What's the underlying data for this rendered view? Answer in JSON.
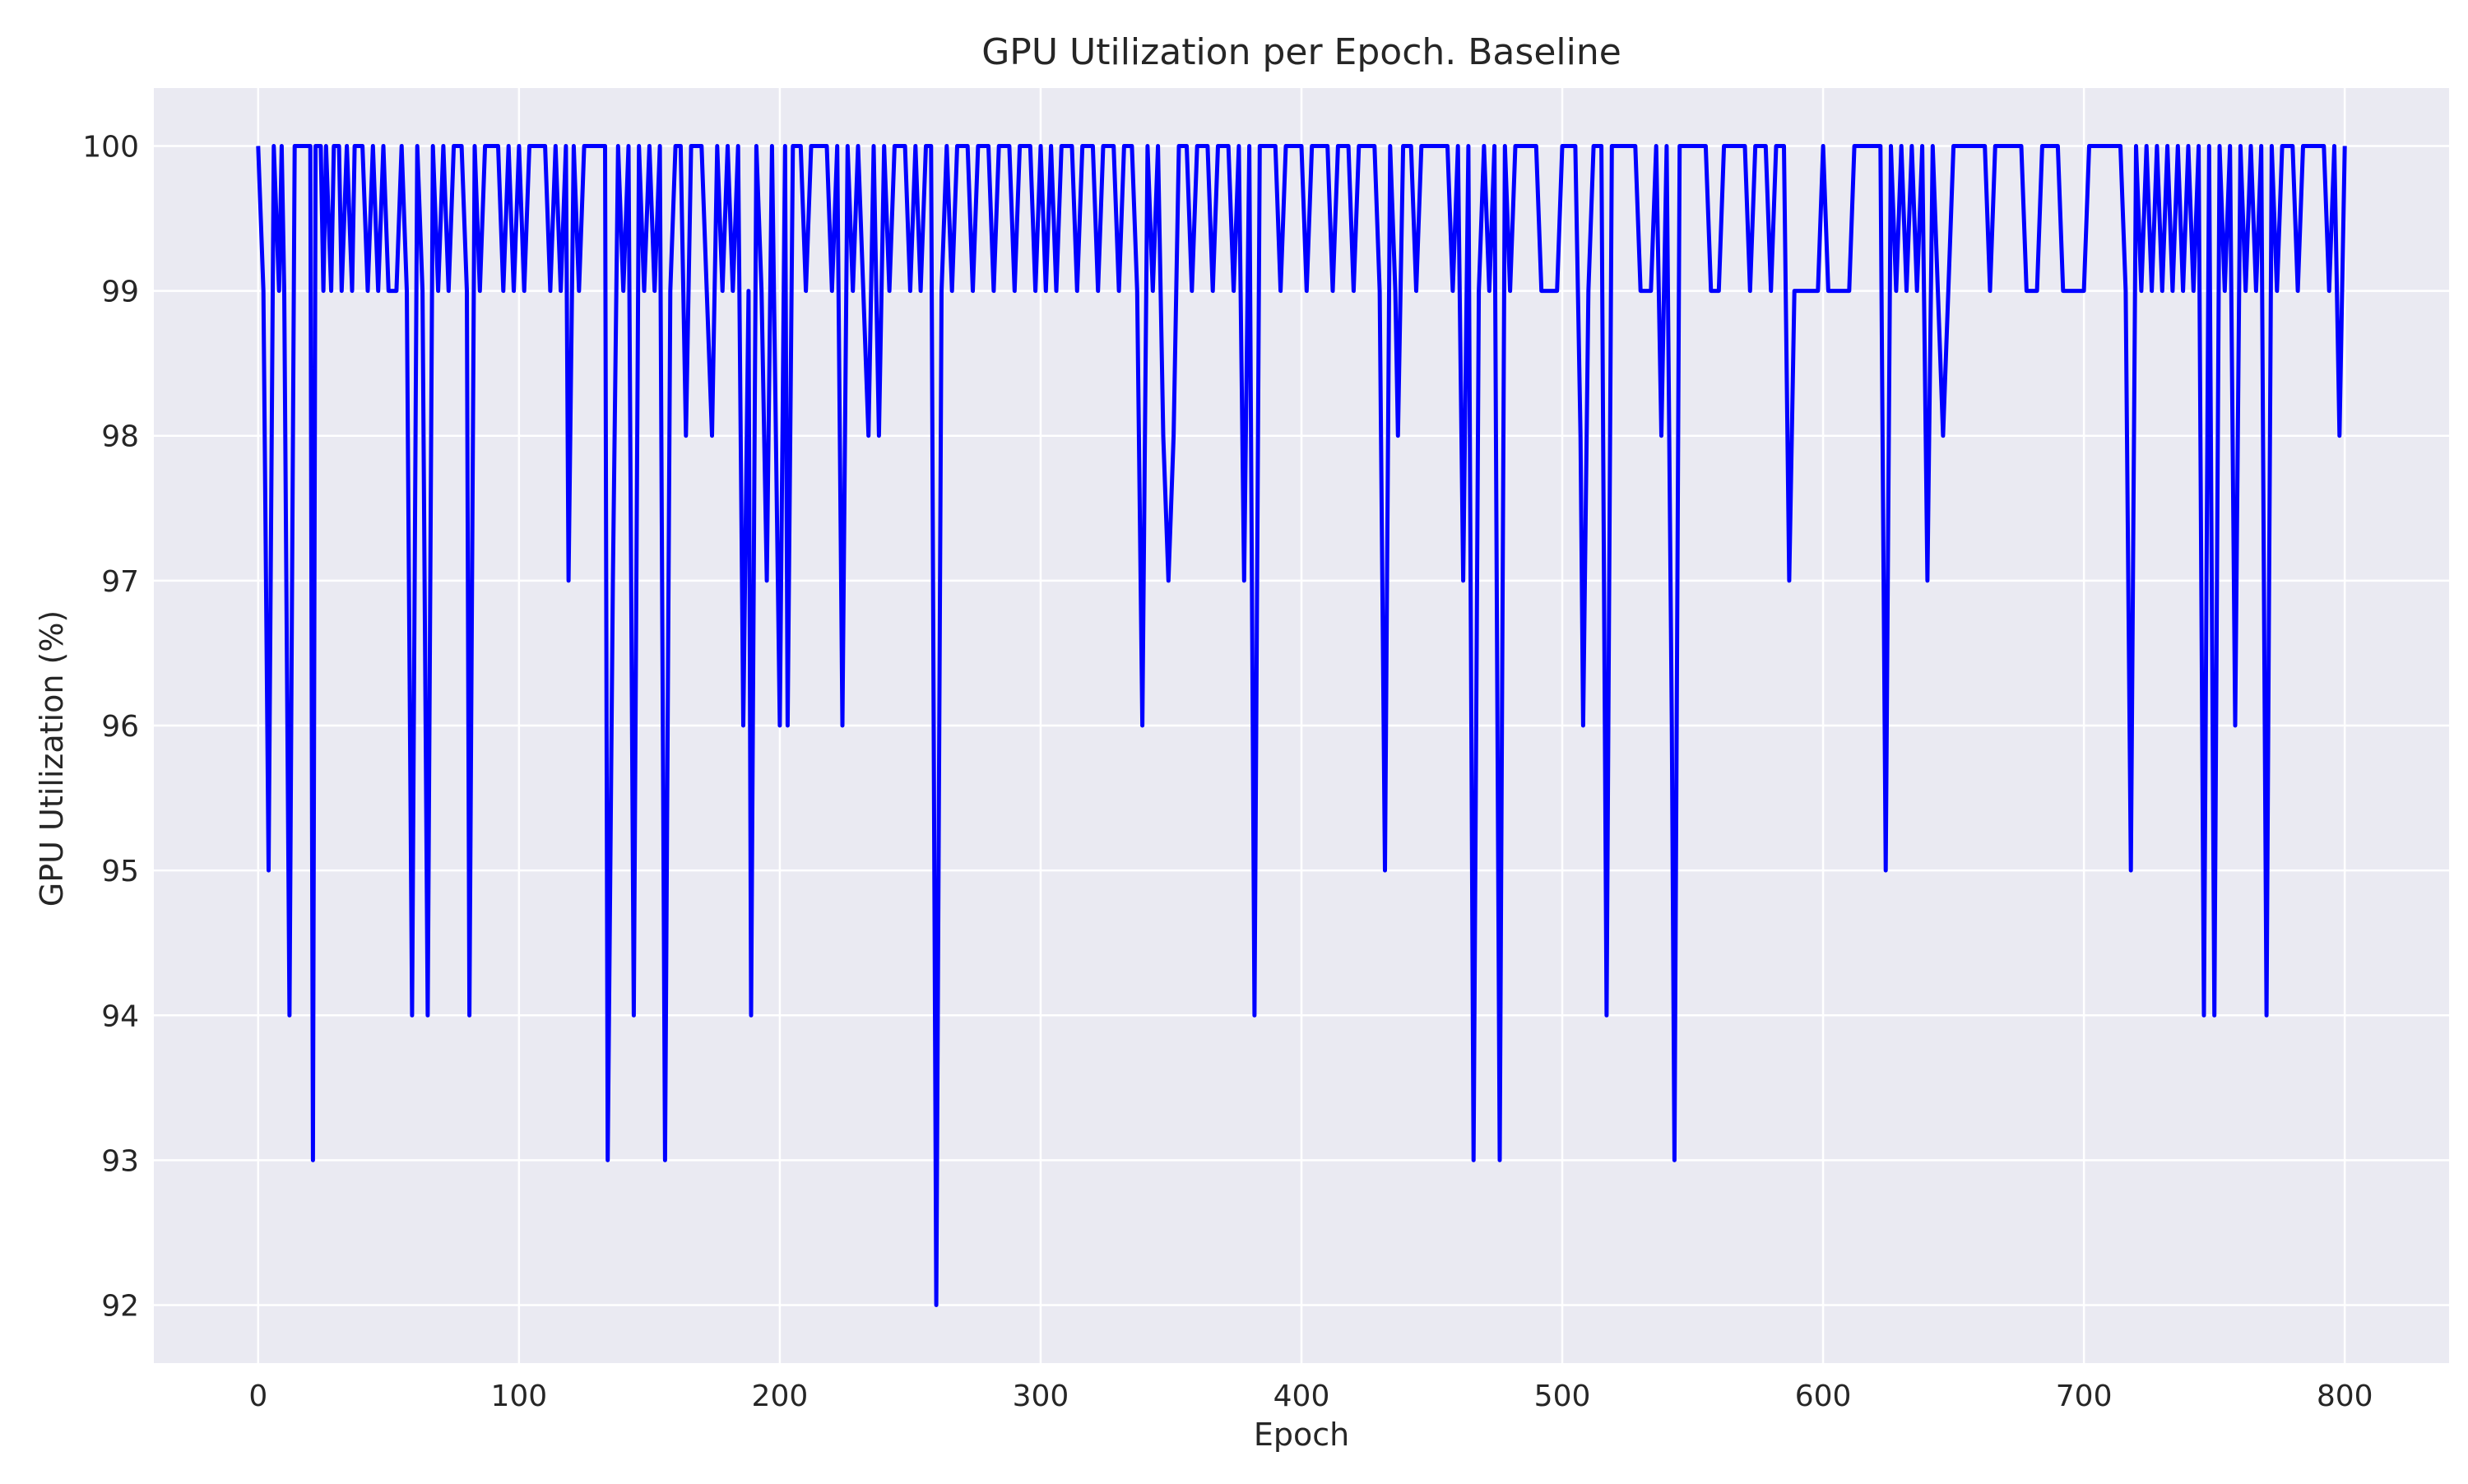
{
  "chart_data": {
    "type": "line",
    "title": "GPU Utilization per Epoch. Baseline",
    "xlabel": "Epoch",
    "ylabel": "GPU Utilization (%)",
    "xlim": [
      -40,
      840
    ],
    "ylim": [
      91.6,
      100.4
    ],
    "xticks": [
      0,
      100,
      200,
      300,
      400,
      500,
      600,
      700,
      800
    ],
    "yticks": [
      92,
      93,
      94,
      95,
      96,
      97,
      98,
      99,
      100
    ],
    "grid": true,
    "background": "#eaeaf2",
    "grid_color": "#ffffff",
    "line_color": "#0000ff",
    "series": [
      {
        "points": [
          [
            0,
            100
          ],
          [
            2,
            99
          ],
          [
            4,
            95
          ],
          [
            6,
            100
          ],
          [
            8,
            99
          ],
          [
            9,
            100
          ],
          [
            10,
            99
          ],
          [
            12,
            94
          ],
          [
            14,
            100
          ],
          [
            20,
            100
          ],
          [
            21,
            93
          ],
          [
            22,
            100
          ],
          [
            24,
            100
          ],
          [
            25,
            99
          ],
          [
            26,
            100
          ],
          [
            28,
            99
          ],
          [
            29,
            100
          ],
          [
            31,
            100
          ],
          [
            32,
            99
          ],
          [
            34,
            100
          ],
          [
            36,
            99
          ],
          [
            37,
            100
          ],
          [
            40,
            100
          ],
          [
            42,
            99
          ],
          [
            44,
            100
          ],
          [
            46,
            99
          ],
          [
            48,
            100
          ],
          [
            50,
            99
          ],
          [
            53,
            99
          ],
          [
            55,
            100
          ],
          [
            57,
            99
          ],
          [
            59,
            94
          ],
          [
            61,
            100
          ],
          [
            63,
            99
          ],
          [
            65,
            94
          ],
          [
            67,
            100
          ],
          [
            69,
            99
          ],
          [
            71,
            100
          ],
          [
            73,
            99
          ],
          [
            75,
            100
          ],
          [
            78,
            100
          ],
          [
            80,
            99
          ],
          [
            81,
            94
          ],
          [
            83,
            100
          ],
          [
            85,
            99
          ],
          [
            87,
            100
          ],
          [
            92,
            100
          ],
          [
            94,
            99
          ],
          [
            96,
            100
          ],
          [
            98,
            99
          ],
          [
            100,
            100
          ],
          [
            102,
            99
          ],
          [
            104,
            100
          ],
          [
            110,
            100
          ],
          [
            112,
            99
          ],
          [
            114,
            100
          ],
          [
            116,
            99
          ],
          [
            118,
            100
          ],
          [
            119,
            97
          ],
          [
            121,
            100
          ],
          [
            123,
            99
          ],
          [
            125,
            100
          ],
          [
            133,
            100
          ],
          [
            134,
            93
          ],
          [
            136,
            97
          ],
          [
            138,
            100
          ],
          [
            140,
            99
          ],
          [
            142,
            100
          ],
          [
            144,
            94
          ],
          [
            146,
            100
          ],
          [
            148,
            99
          ],
          [
            150,
            100
          ],
          [
            152,
            99
          ],
          [
            154,
            100
          ],
          [
            156,
            93
          ],
          [
            158,
            99
          ],
          [
            160,
            100
          ],
          [
            162,
            100
          ],
          [
            164,
            98
          ],
          [
            166,
            100
          ],
          [
            170,
            100
          ],
          [
            172,
            99
          ],
          [
            174,
            98
          ],
          [
            176,
            100
          ],
          [
            178,
            99
          ],
          [
            180,
            100
          ],
          [
            182,
            99
          ],
          [
            184,
            100
          ],
          [
            186,
            96
          ],
          [
            188,
            99
          ],
          [
            189,
            94
          ],
          [
            191,
            100
          ],
          [
            193,
            99
          ],
          [
            195,
            97
          ],
          [
            197,
            100
          ],
          [
            200,
            96
          ],
          [
            202,
            100
          ],
          [
            203,
            96
          ],
          [
            205,
            100
          ],
          [
            208,
            100
          ],
          [
            210,
            99
          ],
          [
            212,
            100
          ],
          [
            218,
            100
          ],
          [
            220,
            99
          ],
          [
            222,
            100
          ],
          [
            224,
            96
          ],
          [
            226,
            100
          ],
          [
            228,
            99
          ],
          [
            230,
            100
          ],
          [
            232,
            99
          ],
          [
            234,
            98
          ],
          [
            236,
            100
          ],
          [
            238,
            98
          ],
          [
            240,
            100
          ],
          [
            242,
            99
          ],
          [
            244,
            100
          ],
          [
            248,
            100
          ],
          [
            250,
            99
          ],
          [
            252,
            100
          ],
          [
            254,
            99
          ],
          [
            256,
            100
          ],
          [
            258,
            100
          ],
          [
            260,
            92
          ],
          [
            262,
            99
          ],
          [
            264,
            100
          ],
          [
            266,
            99
          ],
          [
            268,
            100
          ],
          [
            272,
            100
          ],
          [
            274,
            99
          ],
          [
            276,
            100
          ],
          [
            280,
            100
          ],
          [
            282,
            99
          ],
          [
            284,
            100
          ],
          [
            288,
            100
          ],
          [
            290,
            99
          ],
          [
            292,
            100
          ],
          [
            296,
            100
          ],
          [
            298,
            99
          ],
          [
            300,
            100
          ],
          [
            302,
            99
          ],
          [
            304,
            100
          ],
          [
            306,
            99
          ],
          [
            308,
            100
          ],
          [
            312,
            100
          ],
          [
            314,
            99
          ],
          [
            316,
            100
          ],
          [
            320,
            100
          ],
          [
            322,
            99
          ],
          [
            324,
            100
          ],
          [
            328,
            100
          ],
          [
            330,
            99
          ],
          [
            332,
            100
          ],
          [
            335,
            100
          ],
          [
            337,
            99
          ],
          [
            339,
            96
          ],
          [
            341,
            100
          ],
          [
            343,
            99
          ],
          [
            345,
            100
          ],
          [
            347,
            98
          ],
          [
            349,
            97
          ],
          [
            351,
            98
          ],
          [
            353,
            100
          ],
          [
            356,
            100
          ],
          [
            358,
            99
          ],
          [
            360,
            100
          ],
          [
            364,
            100
          ],
          [
            366,
            99
          ],
          [
            368,
            100
          ],
          [
            372,
            100
          ],
          [
            374,
            99
          ],
          [
            376,
            100
          ],
          [
            378,
            97
          ],
          [
            380,
            100
          ],
          [
            382,
            94
          ],
          [
            384,
            100
          ],
          [
            390,
            100
          ],
          [
            392,
            99
          ],
          [
            394,
            100
          ],
          [
            400,
            100
          ],
          [
            402,
            99
          ],
          [
            404,
            100
          ],
          [
            410,
            100
          ],
          [
            412,
            99
          ],
          [
            414,
            100
          ],
          [
            418,
            100
          ],
          [
            420,
            99
          ],
          [
            422,
            100
          ],
          [
            428,
            100
          ],
          [
            430,
            99
          ],
          [
            432,
            95
          ],
          [
            434,
            100
          ],
          [
            436,
            99
          ],
          [
            437,
            98
          ],
          [
            439,
            100
          ],
          [
            442,
            100
          ],
          [
            444,
            99
          ],
          [
            446,
            100
          ],
          [
            456,
            100
          ],
          [
            458,
            99
          ],
          [
            460,
            100
          ],
          [
            462,
            97
          ],
          [
            464,
            100
          ],
          [
            466,
            93
          ],
          [
            468,
            99
          ],
          [
            470,
            100
          ],
          [
            472,
            99
          ],
          [
            474,
            100
          ],
          [
            476,
            93
          ],
          [
            478,
            100
          ],
          [
            480,
            99
          ],
          [
            482,
            100
          ],
          [
            490,
            100
          ],
          [
            492,
            99
          ],
          [
            498,
            99
          ],
          [
            500,
            100
          ],
          [
            505,
            100
          ],
          [
            507,
            98
          ],
          [
            508,
            96
          ],
          [
            510,
            99
          ],
          [
            512,
            100
          ],
          [
            515,
            100
          ],
          [
            517,
            94
          ],
          [
            519,
            100
          ],
          [
            528,
            100
          ],
          [
            530,
            99
          ],
          [
            534,
            99
          ],
          [
            536,
            100
          ],
          [
            538,
            98
          ],
          [
            540,
            100
          ],
          [
            542,
            96
          ],
          [
            543,
            93
          ],
          [
            545,
            100
          ],
          [
            555,
            100
          ],
          [
            557,
            99
          ],
          [
            560,
            99
          ],
          [
            562,
            100
          ],
          [
            570,
            100
          ],
          [
            572,
            99
          ],
          [
            574,
            100
          ],
          [
            578,
            100
          ],
          [
            580,
            99
          ],
          [
            582,
            100
          ],
          [
            585,
            100
          ],
          [
            587,
            97
          ],
          [
            589,
            99
          ],
          [
            598,
            99
          ],
          [
            600,
            100
          ],
          [
            602,
            99
          ],
          [
            610,
            99
          ],
          [
            612,
            100
          ],
          [
            622,
            100
          ],
          [
            624,
            95
          ],
          [
            626,
            100
          ],
          [
            628,
            99
          ],
          [
            630,
            100
          ],
          [
            632,
            99
          ],
          [
            634,
            100
          ],
          [
            636,
            99
          ],
          [
            638,
            100
          ],
          [
            640,
            97
          ],
          [
            642,
            100
          ],
          [
            644,
            99
          ],
          [
            646,
            98
          ],
          [
            648,
            99
          ],
          [
            650,
            100
          ],
          [
            662,
            100
          ],
          [
            664,
            99
          ],
          [
            666,
            100
          ],
          [
            676,
            100
          ],
          [
            678,
            99
          ],
          [
            682,
            99
          ],
          [
            684,
            100
          ],
          [
            690,
            100
          ],
          [
            692,
            99
          ],
          [
            700,
            99
          ],
          [
            702,
            100
          ],
          [
            714,
            100
          ],
          [
            716,
            99
          ],
          [
            718,
            95
          ],
          [
            720,
            100
          ],
          [
            722,
            99
          ],
          [
            724,
            100
          ],
          [
            726,
            99
          ],
          [
            728,
            100
          ],
          [
            730,
            99
          ],
          [
            732,
            100
          ],
          [
            734,
            99
          ],
          [
            736,
            100
          ],
          [
            738,
            99
          ],
          [
            740,
            100
          ],
          [
            742,
            99
          ],
          [
            744,
            100
          ],
          [
            746,
            94
          ],
          [
            748,
            100
          ],
          [
            750,
            94
          ],
          [
            752,
            100
          ],
          [
            754,
            99
          ],
          [
            756,
            100
          ],
          [
            758,
            96
          ],
          [
            760,
            100
          ],
          [
            762,
            99
          ],
          [
            764,
            100
          ],
          [
            766,
            99
          ],
          [
            768,
            100
          ],
          [
            770,
            94
          ],
          [
            772,
            100
          ],
          [
            774,
            99
          ],
          [
            776,
            100
          ],
          [
            780,
            100
          ],
          [
            782,
            99
          ],
          [
            784,
            100
          ],
          [
            792,
            100
          ],
          [
            794,
            99
          ],
          [
            796,
            100
          ],
          [
            798,
            98
          ],
          [
            800,
            100
          ]
        ]
      }
    ]
  }
}
